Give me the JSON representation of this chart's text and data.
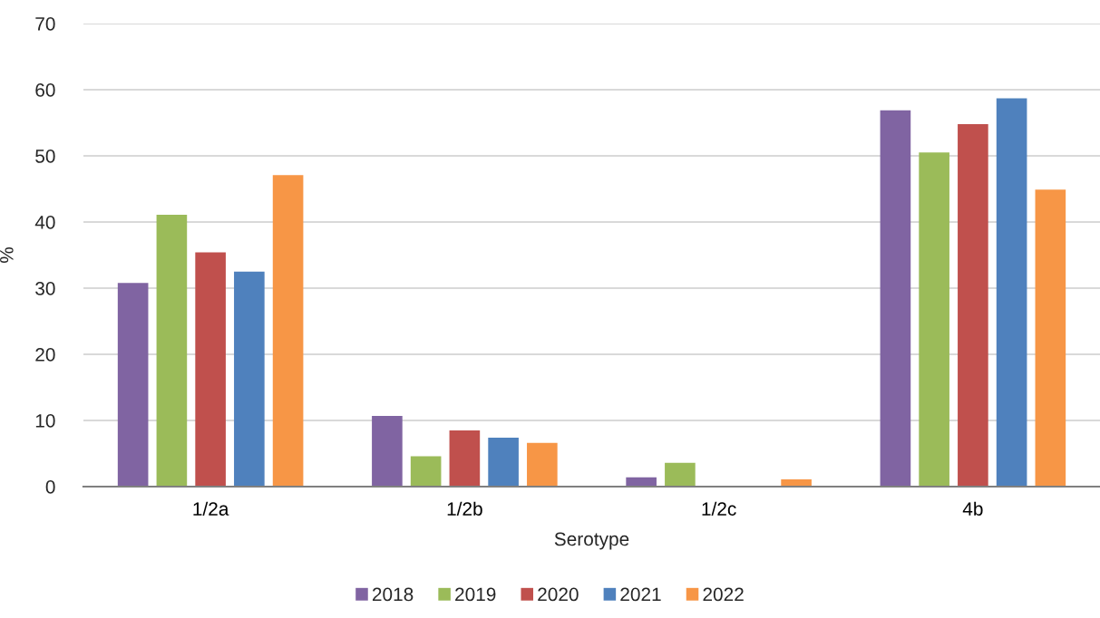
{
  "chart_data": {
    "type": "bar",
    "xlabel": "Serotype",
    "ylabel": "%",
    "categories": [
      "1/2a",
      "1/2b",
      "1/2c",
      "4b"
    ],
    "series": [
      {
        "name": "2018",
        "color": "#8064a2",
        "values": [
          30.8,
          10.7,
          1.4,
          56.9
        ]
      },
      {
        "name": "2019",
        "color": "#9bbb59",
        "values": [
          41.1,
          4.6,
          3.6,
          50.5
        ]
      },
      {
        "name": "2020",
        "color": "#c0504d",
        "values": [
          35.4,
          8.5,
          0,
          54.8
        ]
      },
      {
        "name": "2021",
        "color": "#4f81bd",
        "values": [
          32.5,
          7.4,
          0,
          58.7
        ]
      },
      {
        "name": "2022",
        "color": "#f79646",
        "values": [
          47.1,
          6.6,
          1.1,
          44.9
        ]
      }
    ],
    "ylim": [
      0,
      70
    ],
    "yticks": [
      0,
      10,
      20,
      30,
      40,
      50,
      60,
      70
    ],
    "grid": "y",
    "legend": "bottom"
  }
}
